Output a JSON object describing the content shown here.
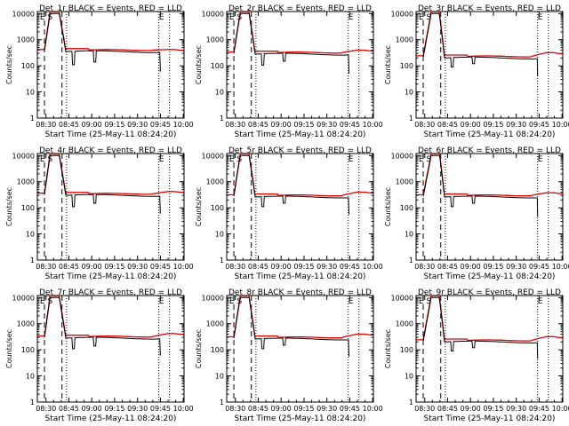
{
  "colors": {
    "events": "#000000",
    "lld": "#e00000",
    "axis": "#000000"
  },
  "chart_data": {
    "type": "line",
    "common": {
      "xlabel": "Start Time (25-May-11 08:24:20)",
      "ylabel": "Counts/sec",
      "x_ticks": [
        "08:30",
        "08:45",
        "09:00",
        "09:15",
        "09:30",
        "09:45",
        "10:00"
      ],
      "x_tick_minutes": [
        30,
        45,
        60,
        75,
        90,
        105,
        120
      ],
      "xlim_minutes": [
        24.33,
        120.5
      ],
      "y_ticks": [
        "1",
        "10",
        "100",
        "1000",
        "10000"
      ],
      "ylim": [
        1,
        12000
      ],
      "y_scale": "log",
      "legend_markers": [
        "E",
        "S",
        "E"
      ],
      "legend_marker_minutes": [
        26,
        31,
        104
      ],
      "dashed_vlines_minutes": [
        29,
        40.5
      ],
      "dotted_vlines_minutes": [
        43.5,
        104,
        111
      ],
      "series": [
        {
          "name": "Events",
          "color": "black"
        },
        {
          "name": "LLD",
          "color": "red"
        }
      ]
    },
    "panels": [
      {
        "title": "Det_1r BLACK = Events, RED = LLD",
        "base": 350,
        "spike_x": 35.5,
        "spike_w": 3.2,
        "dips": [
          [
            48,
            110
          ],
          [
            62,
            140
          ]
        ],
        "end_x": 105,
        "lld_end": 420,
        "late_drop": 60
      },
      {
        "title": "Det_2r BLACK = Events, RED = LLD",
        "base": 280,
        "spike_x": 36,
        "spike_w": 3.0,
        "dips": [
          [
            48,
            105
          ],
          [
            62,
            150
          ]
        ],
        "end_x": 104.5,
        "lld_end": 400,
        "late_drop": 50
      },
      {
        "title": "Det_3r BLACK = Events, RED = LLD",
        "base": 200,
        "spike_x": 37,
        "spike_w": 2.6,
        "dips": [
          [
            48,
            90
          ],
          [
            62,
            120
          ]
        ],
        "end_x": 104,
        "lld_end": 320,
        "late_drop": 40
      },
      {
        "title": "Det_4r BLACK = Events, RED = LLD",
        "base": 300,
        "spike_x": 35.5,
        "spike_w": 3.2,
        "dips": [
          [
            48,
            110
          ],
          [
            62,
            150
          ]
        ],
        "end_x": 105,
        "lld_end": 420,
        "late_drop": 60
      },
      {
        "title": "Det_5r BLACK = Events, RED = LLD",
        "base": 260,
        "spike_x": 36,
        "spike_w": 3.0,
        "dips": [
          [
            48,
            110
          ],
          [
            62,
            150
          ]
        ],
        "end_x": 104.5,
        "lld_end": 400,
        "late_drop": 55
      },
      {
        "title": "Det_6r BLACK = Events, RED = LLD",
        "base": 260,
        "spike_x": 37,
        "spike_w": 2.8,
        "dips": [
          [
            48,
            110
          ],
          [
            62,
            150
          ]
        ],
        "end_x": 104,
        "lld_end": 380,
        "late_drop": 45
      },
      {
        "title": "Det_7r BLACK = Events, RED = LLD",
        "base": 280,
        "spike_x": 35.5,
        "spike_w": 3.2,
        "dips": [
          [
            48,
            110
          ],
          [
            62,
            140
          ]
        ],
        "end_x": 105,
        "lld_end": 420,
        "late_drop": 60
      },
      {
        "title": "Det_8r BLACK = Events, RED = LLD",
        "base": 260,
        "spike_x": 36,
        "spike_w": 3.0,
        "dips": [
          [
            48,
            110
          ],
          [
            62,
            150
          ]
        ],
        "end_x": 104.5,
        "lld_end": 400,
        "late_drop": 55
      },
      {
        "title": "Det_9r BLACK = Events, RED = LLD",
        "base": 200,
        "spike_x": 37,
        "spike_w": 2.6,
        "dips": [
          [
            48,
            90
          ],
          [
            62,
            120
          ]
        ],
        "end_x": 104,
        "lld_end": 320,
        "late_drop": 45
      }
    ]
  }
}
